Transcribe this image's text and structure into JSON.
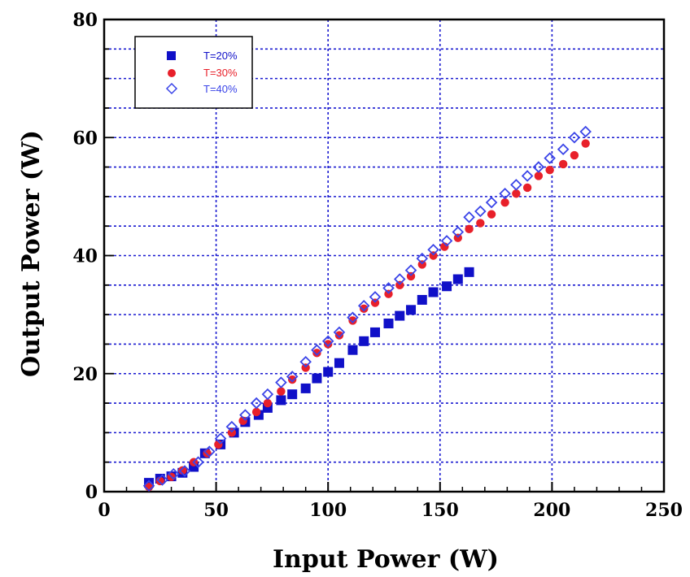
{
  "chart_data": {
    "type": "scatter",
    "xlabel": "Input Power (W)",
    "ylabel": "Output Power (W)",
    "xlim": [
      0,
      250
    ],
    "ylim": [
      0,
      80
    ],
    "x_ticks": [
      "0",
      "50",
      "100",
      "150",
      "200",
      "250"
    ],
    "y_ticks": [
      "0",
      "20",
      "40",
      "60",
      "80"
    ],
    "grid": true,
    "legend_position": "top-left",
    "series": [
      {
        "name": "T=20%",
        "color": "#1010c8",
        "marker": "filled-square",
        "points": [
          [
            20,
            1.5
          ],
          [
            25,
            2.2
          ],
          [
            30,
            2.6
          ],
          [
            35,
            3.2
          ],
          [
            40,
            4.2
          ],
          [
            45,
            6.5
          ],
          [
            52,
            8.0
          ],
          [
            58,
            10.0
          ],
          [
            63,
            11.8
          ],
          [
            69,
            13.0
          ],
          [
            73,
            14.2
          ],
          [
            79,
            15.5
          ],
          [
            84,
            16.5
          ],
          [
            90,
            17.5
          ],
          [
            95,
            19.2
          ],
          [
            100,
            20.3
          ],
          [
            105,
            21.8
          ],
          [
            111,
            24.0
          ],
          [
            116,
            25.5
          ],
          [
            121,
            27.0
          ],
          [
            127,
            28.5
          ],
          [
            132,
            29.8
          ],
          [
            137,
            30.8
          ],
          [
            142,
            32.5
          ],
          [
            147,
            33.8
          ],
          [
            153,
            34.8
          ],
          [
            158,
            36.0
          ],
          [
            163,
            37.2
          ]
        ]
      },
      {
        "name": "T=30%",
        "color": "#e8202a",
        "marker": "filled-circle",
        "points": [
          [
            20,
            0.8
          ],
          [
            25,
            1.8
          ],
          [
            30,
            2.5
          ],
          [
            35,
            3.6
          ],
          [
            40,
            5.0
          ],
          [
            46,
            6.5
          ],
          [
            51,
            8.0
          ],
          [
            57,
            10.0
          ],
          [
            62,
            12.0
          ],
          [
            68,
            13.5
          ],
          [
            73,
            15.0
          ],
          [
            79,
            17.0
          ],
          [
            84,
            19.0
          ],
          [
            90,
            21.0
          ],
          [
            95,
            23.5
          ],
          [
            100,
            25.0
          ],
          [
            105,
            26.5
          ],
          [
            111,
            29.0
          ],
          [
            116,
            31.0
          ],
          [
            121,
            32.0
          ],
          [
            127,
            33.5
          ],
          [
            132,
            35.0
          ],
          [
            137,
            36.5
          ],
          [
            142,
            38.5
          ],
          [
            147,
            40.0
          ],
          [
            152,
            41.5
          ],
          [
            158,
            43.0
          ],
          [
            163,
            44.5
          ],
          [
            168,
            45.5
          ],
          [
            173,
            47.0
          ],
          [
            179,
            49.0
          ],
          [
            184,
            50.5
          ],
          [
            189,
            51.5
          ],
          [
            194,
            53.5
          ],
          [
            199,
            54.5
          ],
          [
            205,
            55.5
          ],
          [
            210,
            57.0
          ],
          [
            215,
            59.0
          ]
        ]
      },
      {
        "name": "T=40%",
        "color": "#3a44e8",
        "marker": "open-diamond",
        "points": [
          [
            20,
            1.0
          ],
          [
            26,
            2.0
          ],
          [
            31,
            3.0
          ],
          [
            36,
            3.5
          ],
          [
            42,
            5.0
          ],
          [
            47,
            6.8
          ],
          [
            52,
            9.0
          ],
          [
            57,
            11.0
          ],
          [
            63,
            13.0
          ],
          [
            68,
            15.0
          ],
          [
            73,
            16.5
          ],
          [
            79,
            18.5
          ],
          [
            84,
            19.5
          ],
          [
            90,
            22.0
          ],
          [
            95,
            24.0
          ],
          [
            100,
            25.5
          ],
          [
            105,
            27.0
          ],
          [
            111,
            29.5
          ],
          [
            116,
            31.5
          ],
          [
            121,
            33.0
          ],
          [
            127,
            34.5
          ],
          [
            132,
            36.0
          ],
          [
            137,
            37.5
          ],
          [
            142,
            39.5
          ],
          [
            147,
            41.0
          ],
          [
            153,
            42.5
          ],
          [
            158,
            44.0
          ],
          [
            163,
            46.5
          ],
          [
            168,
            47.5
          ],
          [
            173,
            49.0
          ],
          [
            179,
            50.5
          ],
          [
            184,
            52.0
          ],
          [
            189,
            53.5
          ],
          [
            194,
            55.0
          ],
          [
            199,
            56.5
          ],
          [
            205,
            58.0
          ],
          [
            210,
            60.0
          ],
          [
            215,
            61.0
          ]
        ]
      }
    ]
  }
}
